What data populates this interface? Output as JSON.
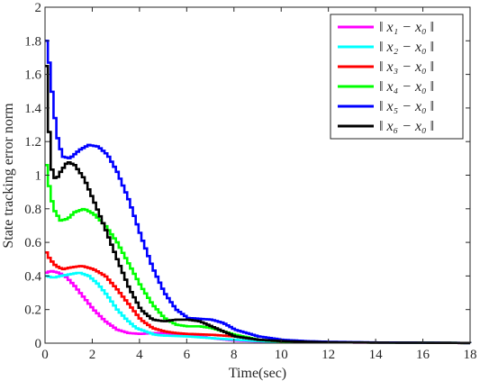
{
  "chart_data": {
    "type": "line",
    "title": "",
    "xlabel": "Time(sec)",
    "ylabel": "State tracking error norm",
    "xlim": [
      0,
      18
    ],
    "ylim": [
      0,
      2
    ],
    "xticks": [
      0,
      2,
      4,
      6,
      8,
      10,
      12,
      14,
      16,
      18
    ],
    "yticks": [
      0,
      0.2,
      0.4,
      0.6,
      0.8,
      1,
      1.2,
      1.4,
      1.6,
      1.8,
      2
    ],
    "xtick_labels": [
      "0",
      "2",
      "4",
      "6",
      "8",
      "10",
      "12",
      "14",
      "16",
      "18"
    ],
    "ytick_labels": [
      "0",
      "0.2",
      "0.4",
      "0.6",
      "0.8",
      "1",
      "1.2",
      "1.4",
      "1.6",
      "1.8",
      "2"
    ],
    "grid": false,
    "legend_position": "top-right",
    "step_style": true,
    "series": [
      {
        "name": "‖ x₁ − x₀ ‖",
        "color": "#ff00ff",
        "points": [
          [
            0,
            0.42
          ],
          [
            0.2,
            0.43
          ],
          [
            0.5,
            0.42
          ],
          [
            0.8,
            0.4
          ],
          [
            1.2,
            0.34
          ],
          [
            1.6,
            0.27
          ],
          [
            2,
            0.2
          ],
          [
            2.5,
            0.13
          ],
          [
            3,
            0.08
          ],
          [
            3.5,
            0.06
          ],
          [
            4,
            0.055
          ],
          [
            4.5,
            0.06
          ],
          [
            5,
            0.06
          ],
          [
            6,
            0.05
          ],
          [
            7,
            0.03
          ],
          [
            8,
            0.015
          ],
          [
            9,
            0.01
          ],
          [
            10,
            0.008
          ],
          [
            12,
            0.005
          ],
          [
            14,
            0.003
          ],
          [
            18,
            0.001
          ]
        ]
      },
      {
        "name": "‖ x₂ − x₀ ‖",
        "color": "#00ffff",
        "points": [
          [
            0,
            0.4
          ],
          [
            0.3,
            0.39
          ],
          [
            0.6,
            0.4
          ],
          [
            1,
            0.41
          ],
          [
            1.4,
            0.42
          ],
          [
            1.8,
            0.4
          ],
          [
            2.2,
            0.35
          ],
          [
            2.6,
            0.28
          ],
          [
            3,
            0.2
          ],
          [
            3.4,
            0.14
          ],
          [
            3.8,
            0.09
          ],
          [
            4.2,
            0.07
          ],
          [
            4.6,
            0.05
          ],
          [
            5,
            0.045
          ],
          [
            6,
            0.04
          ],
          [
            7,
            0.03
          ],
          [
            8,
            0.02
          ],
          [
            9,
            0.012
          ],
          [
            10,
            0.008
          ],
          [
            12,
            0.005
          ],
          [
            18,
            0.001
          ]
        ]
      },
      {
        "name": "‖ x₃ − x₀ ‖",
        "color": "#ff0000",
        "points": [
          [
            0,
            0.54
          ],
          [
            0.15,
            0.5
          ],
          [
            0.4,
            0.46
          ],
          [
            0.7,
            0.44
          ],
          [
            1,
            0.45
          ],
          [
            1.5,
            0.46
          ],
          [
            2,
            0.44
          ],
          [
            2.5,
            0.4
          ],
          [
            3,
            0.32
          ],
          [
            3.5,
            0.23
          ],
          [
            4,
            0.14
          ],
          [
            4.5,
            0.09
          ],
          [
            5,
            0.07
          ],
          [
            5.5,
            0.06
          ],
          [
            6,
            0.055
          ],
          [
            7,
            0.05
          ],
          [
            8,
            0.04
          ],
          [
            9,
            0.02
          ],
          [
            10,
            0.01
          ],
          [
            12,
            0.005
          ],
          [
            18,
            0.001
          ]
        ]
      },
      {
        "name": "‖ x₄ − x₀ ‖",
        "color": "#00ff00",
        "points": [
          [
            0,
            1.06
          ],
          [
            0.1,
            0.95
          ],
          [
            0.3,
            0.8
          ],
          [
            0.6,
            0.73
          ],
          [
            0.9,
            0.74
          ],
          [
            1.2,
            0.78
          ],
          [
            1.6,
            0.8
          ],
          [
            2,
            0.77
          ],
          [
            2.5,
            0.7
          ],
          [
            3,
            0.6
          ],
          [
            3.5,
            0.47
          ],
          [
            4,
            0.34
          ],
          [
            4.5,
            0.23
          ],
          [
            5,
            0.15
          ],
          [
            5.5,
            0.11
          ],
          [
            6,
            0.1
          ],
          [
            6.5,
            0.1
          ],
          [
            7,
            0.09
          ],
          [
            7.5,
            0.07
          ],
          [
            8,
            0.05
          ],
          [
            9,
            0.02
          ],
          [
            10,
            0.01
          ],
          [
            12,
            0.005
          ],
          [
            18,
            0.001
          ]
        ]
      },
      {
        "name": "‖ x₅ − x₀ ‖",
        "color": "#0000ff",
        "points": [
          [
            0,
            1.8
          ],
          [
            0.1,
            1.7
          ],
          [
            0.2,
            1.55
          ],
          [
            0.35,
            1.35
          ],
          [
            0.5,
            1.2
          ],
          [
            0.7,
            1.11
          ],
          [
            1,
            1.1
          ],
          [
            1.4,
            1.15
          ],
          [
            1.8,
            1.18
          ],
          [
            2.2,
            1.17
          ],
          [
            2.6,
            1.12
          ],
          [
            3,
            1.02
          ],
          [
            3.5,
            0.85
          ],
          [
            4,
            0.64
          ],
          [
            4.5,
            0.45
          ],
          [
            5,
            0.3
          ],
          [
            5.5,
            0.2
          ],
          [
            6,
            0.15
          ],
          [
            6.5,
            0.145
          ],
          [
            7,
            0.14
          ],
          [
            7.5,
            0.12
          ],
          [
            8,
            0.08
          ],
          [
            9,
            0.04
          ],
          [
            10,
            0.02
          ],
          [
            11,
            0.012
          ],
          [
            12,
            0.008
          ],
          [
            14,
            0.004
          ],
          [
            18,
            0.001
          ]
        ]
      },
      {
        "name": "‖ x₆ − x₀ ‖",
        "color": "#000000",
        "points": [
          [
            0,
            1.65
          ],
          [
            0.08,
            1.4
          ],
          [
            0.15,
            1.15
          ],
          [
            0.25,
            1.02
          ],
          [
            0.4,
            0.97
          ],
          [
            0.6,
            1.02
          ],
          [
            0.9,
            1.08
          ],
          [
            1.2,
            1.06
          ],
          [
            1.6,
            0.98
          ],
          [
            2,
            0.85
          ],
          [
            2.5,
            0.68
          ],
          [
            3,
            0.5
          ],
          [
            3.5,
            0.33
          ],
          [
            4,
            0.2
          ],
          [
            4.5,
            0.14
          ],
          [
            5,
            0.13
          ],
          [
            5.5,
            0.14
          ],
          [
            6,
            0.14
          ],
          [
            6.5,
            0.13
          ],
          [
            7,
            0.1
          ],
          [
            7.5,
            0.07
          ],
          [
            8,
            0.04
          ],
          [
            9,
            0.02
          ],
          [
            10,
            0.012
          ],
          [
            11,
            0.008
          ],
          [
            12,
            0.005
          ],
          [
            14,
            0.003
          ],
          [
            18,
            0.001
          ]
        ]
      }
    ]
  }
}
